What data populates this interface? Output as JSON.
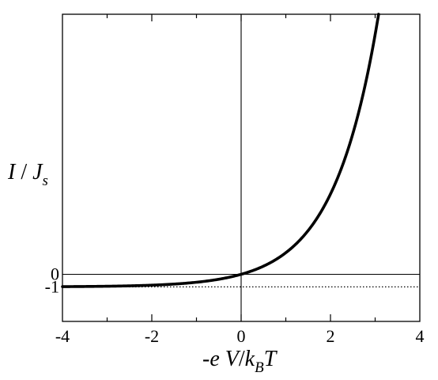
{
  "chart_data": {
    "type": "line",
    "title": "",
    "xlabel": {
      "parts": [
        "-",
        "e V",
        "/",
        "k",
        "B",
        "T"
      ],
      "text": "-e V/k_B T"
    },
    "ylabel": {
      "parts": [
        "I",
        " / ",
        "J",
        "s"
      ],
      "text": "I / J_s"
    },
    "xlim": [
      -4,
      4
    ],
    "ylim": [
      -3.75,
      20.7
    ],
    "x_ticks": [
      -4,
      -2,
      0,
      2,
      4
    ],
    "x_tick_labels": [
      "-4",
      "-2",
      "0",
      "2",
      "4"
    ],
    "y_tick_labels": [
      {
        "value": 0,
        "label": "0"
      },
      {
        "value": -1,
        "label": "-1"
      }
    ],
    "grid": false,
    "series": [
      {
        "function": "exp(x) - 1",
        "x": [
          -4.0,
          -3.5,
          -3.0,
          -2.5,
          -2.0,
          -1.5,
          -1.0,
          -0.5,
          0.0,
          0.5,
          1.0,
          1.5,
          2.0,
          2.25,
          2.5,
          2.75,
          3.0,
          3.05
        ],
        "y": [
          -0.982,
          -0.97,
          -0.95,
          -0.918,
          -0.865,
          -0.777,
          -0.632,
          -0.393,
          0.0,
          0.649,
          1.718,
          3.482,
          6.389,
          8.488,
          11.182,
          14.643,
          19.086,
          20.115
        ]
      }
    ],
    "reference_lines": [
      {
        "orientation": "horizontal",
        "value": 0,
        "style": "solid"
      },
      {
        "orientation": "horizontal",
        "value": -1,
        "style": "dotted"
      },
      {
        "orientation": "vertical",
        "value": 0,
        "style": "solid"
      }
    ]
  }
}
